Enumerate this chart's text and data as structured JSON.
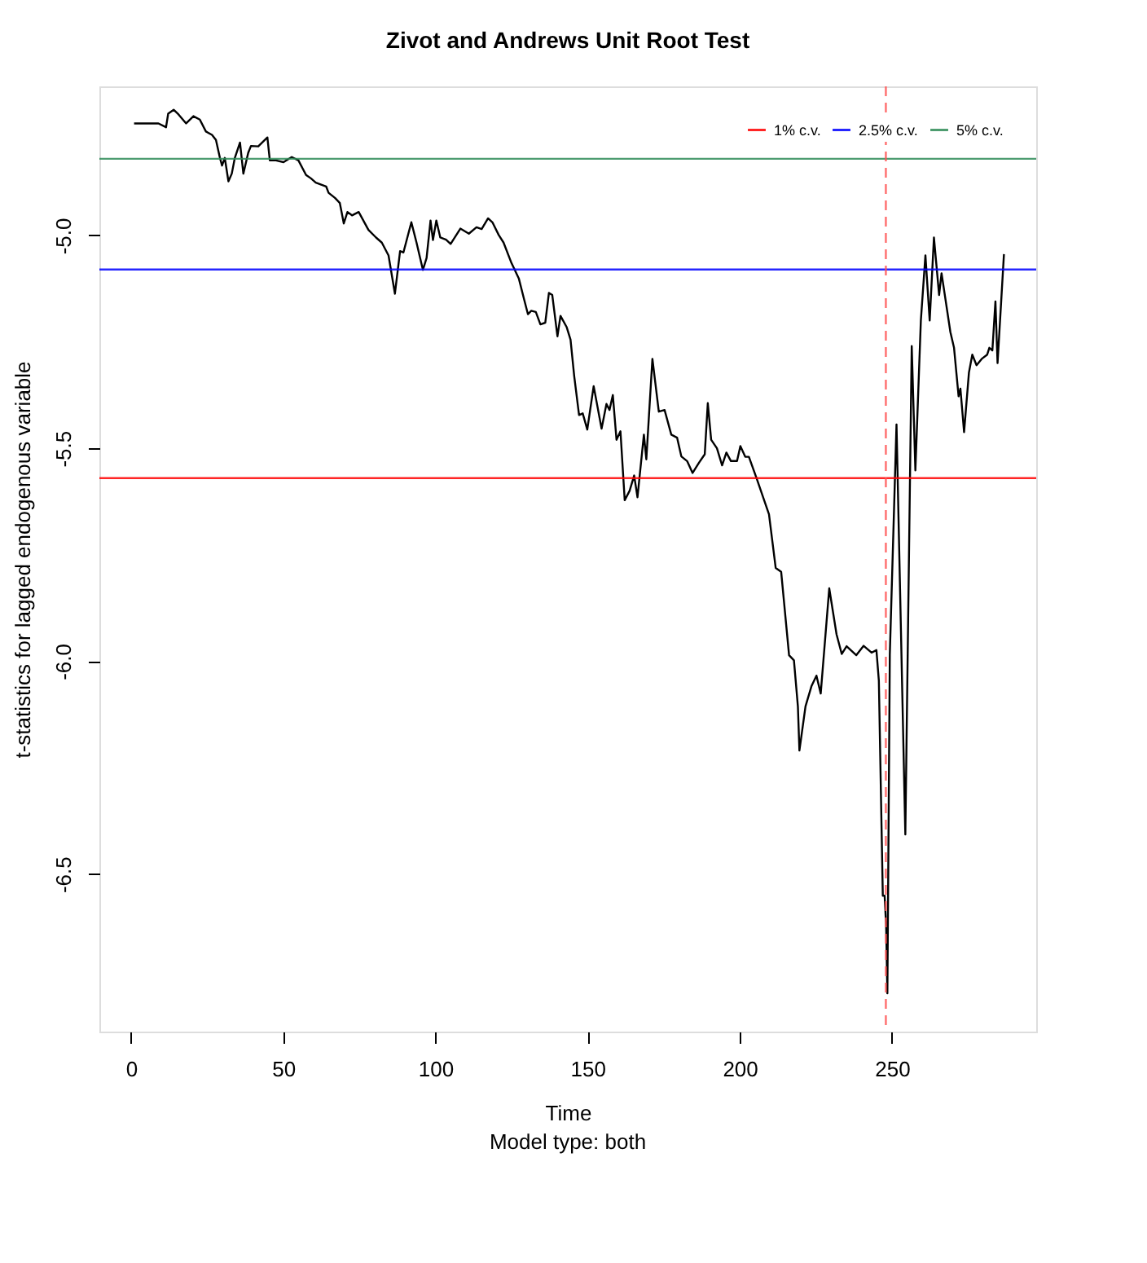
{
  "chart_data": {
    "type": "line",
    "title": "Zivot and Andrews Unit Root Test",
    "xlabel": "Time",
    "ylabel": "t-statistics for lagged endogenous variable",
    "annotations": [
      "Model type: both"
    ],
    "x": [
      1.0,
      9.0,
      11.5,
      12.2,
      14.0,
      15.6,
      18.1,
      20.5,
      22.6,
      24.6,
      26.6,
      27.9,
      29.2,
      29.9,
      30.8,
      32.0,
      33.1,
      34.1,
      35.8,
      36.9,
      38.5,
      39.4,
      41.8,
      44.8,
      45.6,
      47.6,
      50.1,
      52.8,
      55.0,
      57.5,
      59.1,
      60.7,
      64.1,
      64.9,
      67.0,
      68.6,
      69.9,
      71.1,
      72.6,
      74.8,
      78.0,
      80.5,
      82.4,
      84.6,
      86.7,
      88.4,
      89.5,
      92.1,
      93.8,
      95.9,
      97.1,
      98.4,
      99.2,
      100.3,
      101.6,
      103.5,
      105.0,
      108.2,
      111.0,
      113.5,
      115.2,
      117.3,
      118.8,
      120.8,
      122.4,
      125.0,
      127.4,
      129.1,
      130.4,
      131.5,
      133.0,
      134.5,
      136.1,
      137.3,
      138.4,
      140.1,
      141.1,
      143.1,
      144.4,
      145.6,
      147.2,
      148.4,
      149.9,
      152.0,
      154.6,
      156.2,
      157.2,
      158.3,
      159.5,
      160.8,
      162.2,
      163.8,
      165.3,
      166.4,
      168.5,
      169.3,
      171.3,
      173.4,
      175.3,
      177.5,
      179.4,
      180.8,
      182.7,
      184.5,
      186.6,
      188.5,
      189.5,
      190.6,
      192.5,
      194.2,
      195.6,
      197.1,
      199.1,
      200.2,
      201.8,
      203.0,
      205.5,
      209.6,
      211.8,
      213.6,
      216.2,
      217.8,
      219.1,
      219.6,
      221.6,
      223.6,
      225.2,
      226.6,
      229.4,
      231.8,
      233.5,
      235.1,
      238.3,
      240.7,
      243.3,
      244.9,
      245.7,
      247.0,
      247.6,
      248.1,
      248.5,
      249.3,
      251.5,
      254.4,
      256.5,
      257.7,
      259.5,
      261.0,
      262.4,
      263.8,
      265.5,
      266.3,
      269.2,
      270.4,
      271.9,
      272.5,
      273.7,
      275.3,
      276.4,
      277.8,
      279.5,
      281.3,
      282.0,
      283.0,
      284.0,
      284.7,
      286.8
    ],
    "series": [
      {
        "color": "#000000",
        "values": [
          -4.737,
          -4.737,
          -4.746,
          -4.714,
          -4.705,
          -4.716,
          -4.737,
          -4.72,
          -4.728,
          -4.756,
          -4.764,
          -4.776,
          -4.818,
          -4.836,
          -4.818,
          -4.873,
          -4.855,
          -4.818,
          -4.782,
          -4.855,
          -4.806,
          -4.79,
          -4.791,
          -4.77,
          -4.824,
          -4.824,
          -4.828,
          -4.816,
          -4.824,
          -4.858,
          -4.866,
          -4.876,
          -4.885,
          -4.9,
          -4.912,
          -4.924,
          -4.972,
          -4.945,
          -4.953,
          -4.945,
          -4.987,
          -5.005,
          -5.017,
          -5.047,
          -5.137,
          -5.037,
          -5.04,
          -4.969,
          -5.017,
          -5.081,
          -5.053,
          -4.965,
          -5.011,
          -4.965,
          -5.005,
          -5.01,
          -5.02,
          -4.984,
          -4.996,
          -4.981,
          -4.985,
          -4.96,
          -4.97,
          -4.999,
          -5.017,
          -5.065,
          -5.101,
          -5.149,
          -5.185,
          -5.177,
          -5.18,
          -5.209,
          -5.205,
          -5.135,
          -5.14,
          -5.237,
          -5.189,
          -5.215,
          -5.245,
          -5.33,
          -5.422,
          -5.418,
          -5.456,
          -5.354,
          -5.454,
          -5.396,
          -5.41,
          -5.375,
          -5.48,
          -5.46,
          -5.622,
          -5.6,
          -5.564,
          -5.615,
          -5.468,
          -5.526,
          -5.29,
          -5.414,
          -5.41,
          -5.468,
          -5.475,
          -5.519,
          -5.53,
          -5.558,
          -5.534,
          -5.514,
          -5.394,
          -5.48,
          -5.5,
          -5.54,
          -5.51,
          -5.53,
          -5.53,
          -5.495,
          -5.52,
          -5.52,
          -5.57,
          -5.655,
          -5.781,
          -5.79,
          -5.986,
          -5.998,
          -6.106,
          -6.21,
          -6.106,
          -6.058,
          -6.034,
          -6.076,
          -5.829,
          -5.937,
          -5.983,
          -5.965,
          -5.986,
          -5.964,
          -5.98,
          -5.974,
          -6.046,
          -6.551,
          -6.551,
          -6.623,
          -6.78,
          -5.985,
          -5.444,
          -6.407,
          -5.26,
          -5.552,
          -5.2,
          -5.047,
          -5.2,
          -5.005,
          -5.14,
          -5.089,
          -5.227,
          -5.264,
          -5.378,
          -5.36,
          -5.462,
          -5.322,
          -5.28,
          -5.305,
          -5.29,
          -5.28,
          -5.264,
          -5.27,
          -5.155,
          -5.3,
          -5.044
        ]
      }
    ],
    "xlim": [
      -10.4,
      297.4
    ],
    "ylim": [
      -6.87,
      -4.65
    ],
    "xticks": [
      0,
      50,
      100,
      150,
      200,
      250
    ],
    "yticks": [
      {
        "value": -6.5,
        "label": "-6.5"
      },
      {
        "value": -6.0,
        "label": "-6.0"
      },
      {
        "value": -5.5,
        "label": "-5.5"
      },
      {
        "value": -5.0,
        "label": "-5.0"
      }
    ],
    "ref_lines": [
      {
        "axis": "y",
        "value": -5.57,
        "label": "1% c.v.",
        "color": "#ff0000",
        "line_style": "solid"
      },
      {
        "axis": "y",
        "value": -5.08,
        "label": "2.5% c.v.",
        "color": "#0000ff",
        "line_style": "solid"
      },
      {
        "axis": "y",
        "value": -4.82,
        "label": "5% c.v.",
        "color": "#2e8b57",
        "line_style": "solid"
      },
      {
        "axis": "x",
        "value": 248,
        "color": "#ff5555",
        "line_style": "dashed"
      }
    ],
    "legend": "top right",
    "grid": false,
    "marker": "none",
    "line_style": "solid"
  }
}
